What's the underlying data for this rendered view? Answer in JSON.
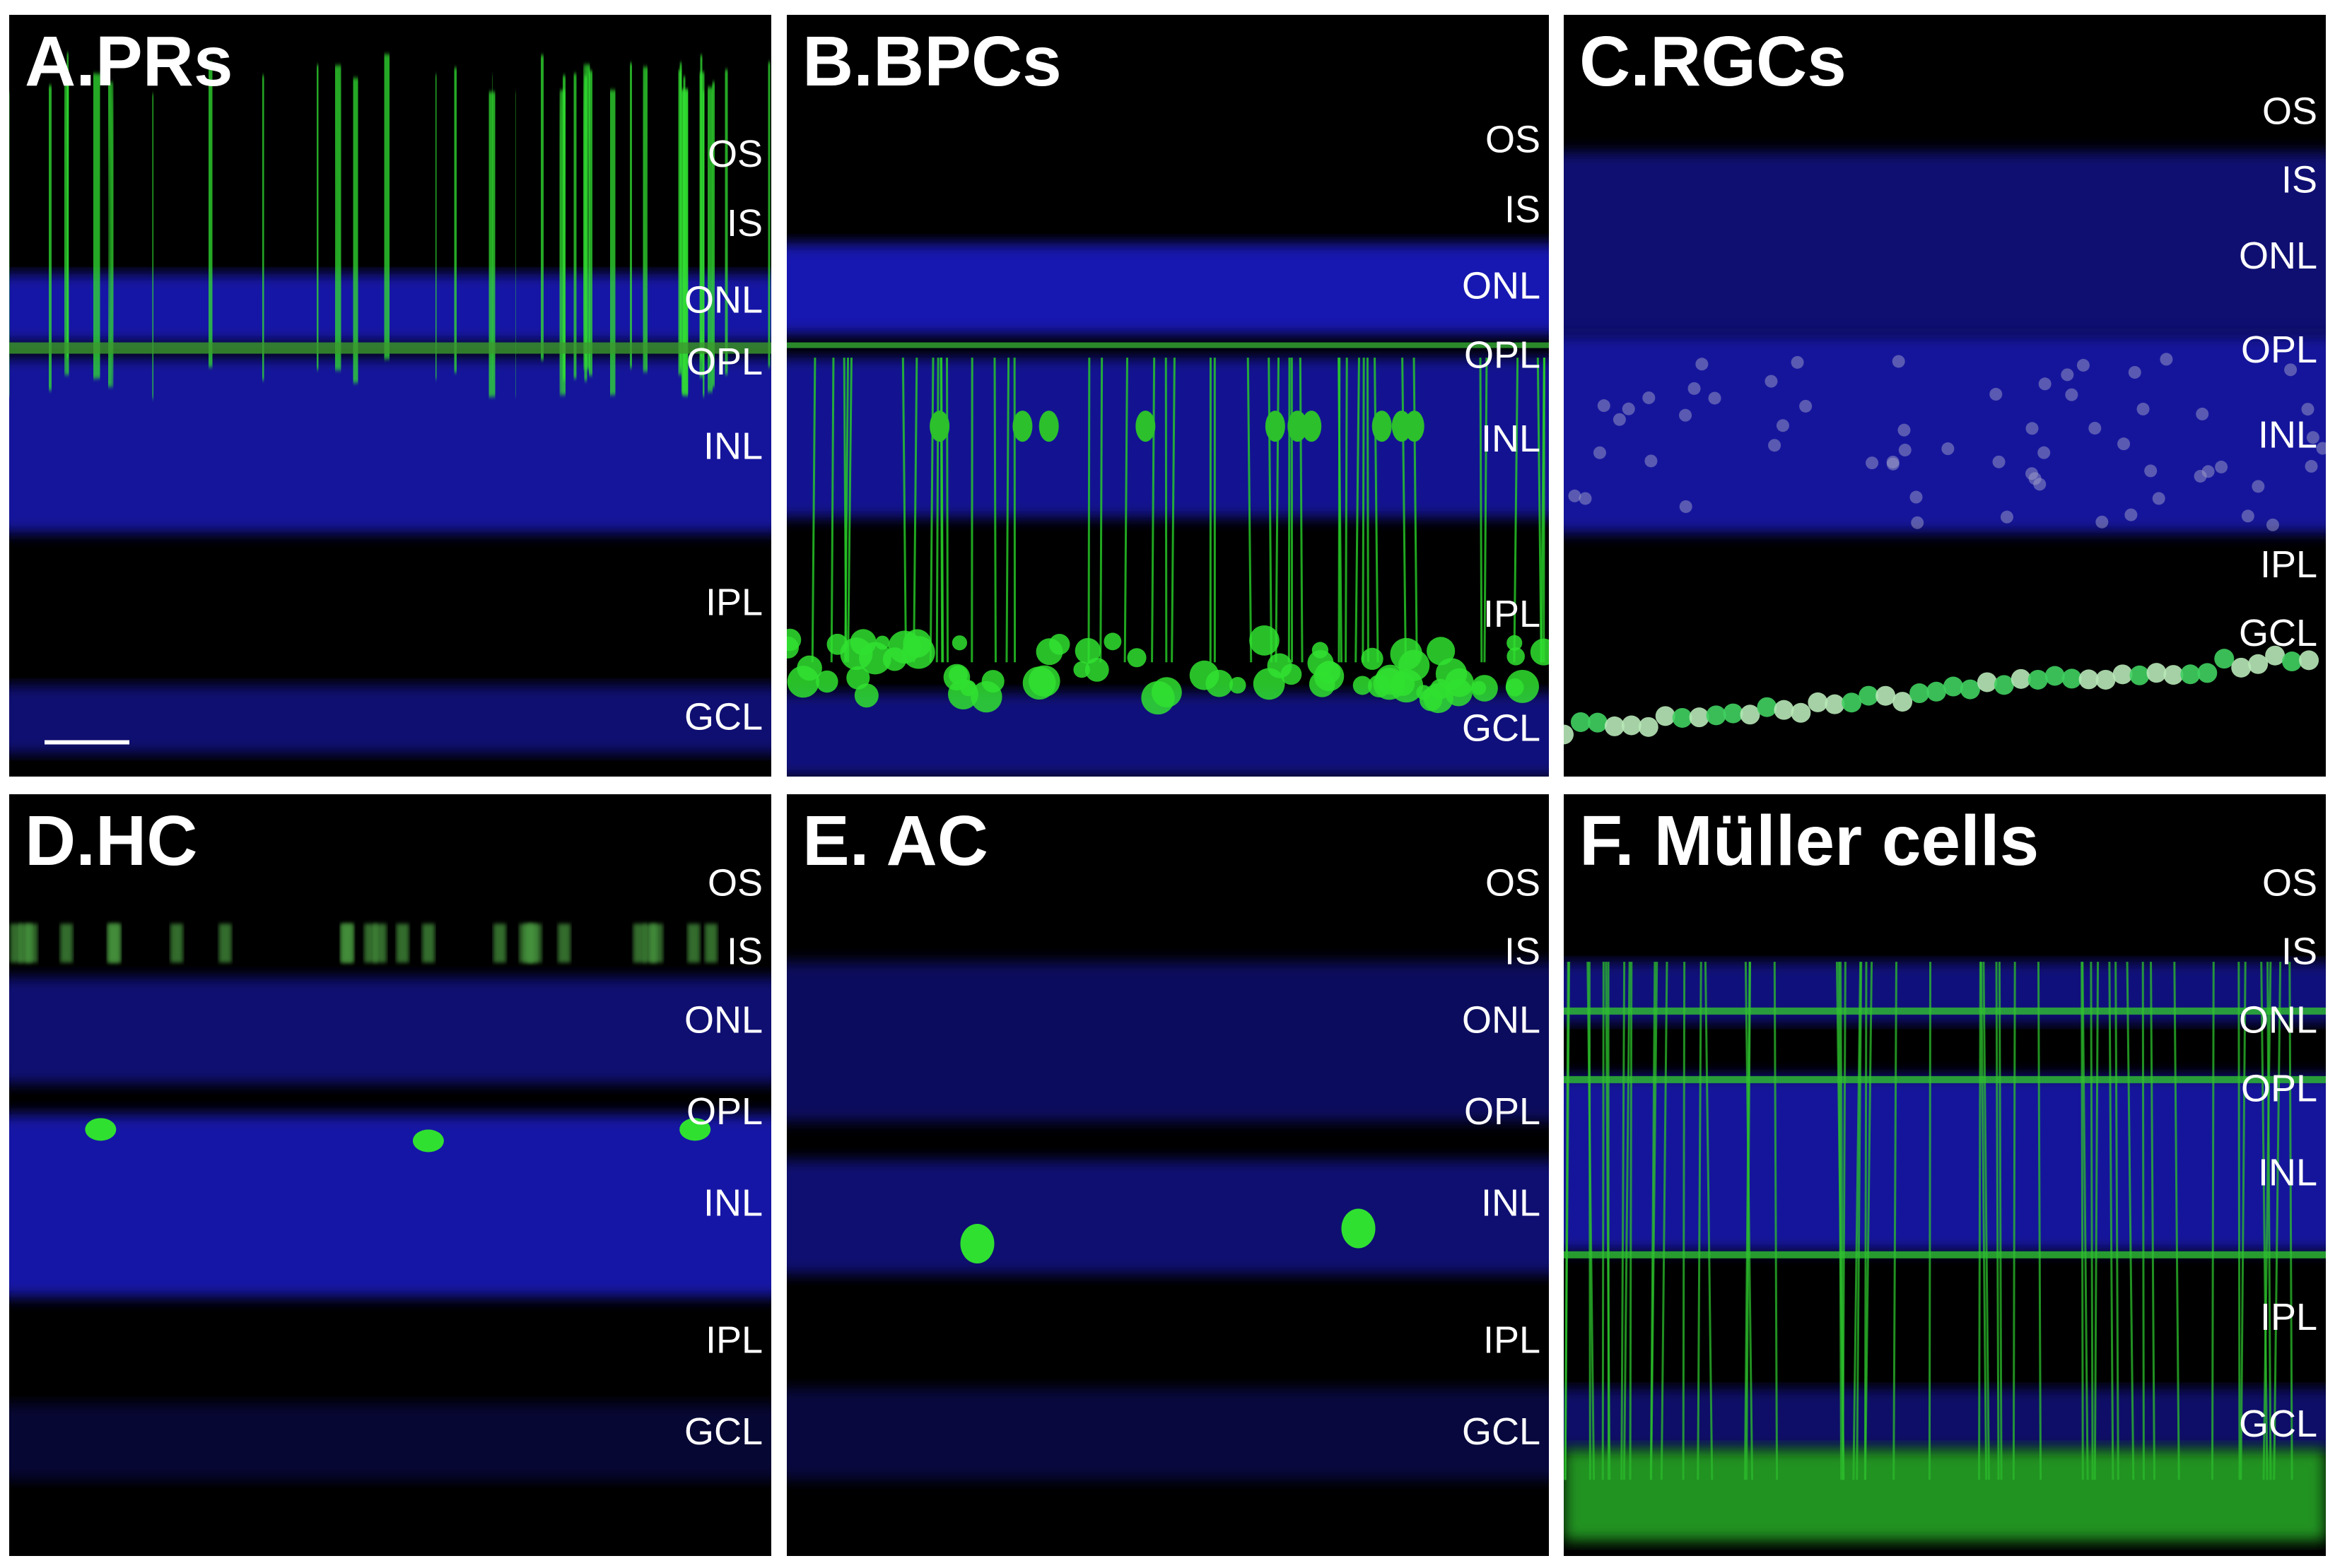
{
  "panels": [
    {
      "title": "A.PRs",
      "layers": [
        "OS",
        "IS",
        "ONL",
        "OPL",
        "INL",
        "IPL",
        "GCL"
      ]
    },
    {
      "title": "B.BPCs",
      "layers": [
        "OS",
        "IS",
        "ONL",
        "OPL",
        "INL",
        "IPL",
        "GCL"
      ]
    },
    {
      "title": "C.RGCs",
      "layers": [
        "OS",
        "IS",
        "ONL",
        "OPL",
        "INL",
        "IPL",
        "GCL"
      ]
    },
    {
      "title": "D.HC",
      "layers": [
        "OS",
        "IS",
        "ONL",
        "OPL",
        "INL",
        "IPL",
        "GCL"
      ]
    },
    {
      "title": "E. AC",
      "layers": [
        "OS",
        "IS",
        "ONL",
        "OPL",
        "INL",
        "IPL",
        "GCL"
      ]
    },
    {
      "title": "F. Müller cells",
      "layers": [
        "OS",
        "IS",
        "ONL",
        "OPL",
        "INL",
        "IPL",
        "GCL"
      ]
    }
  ]
}
